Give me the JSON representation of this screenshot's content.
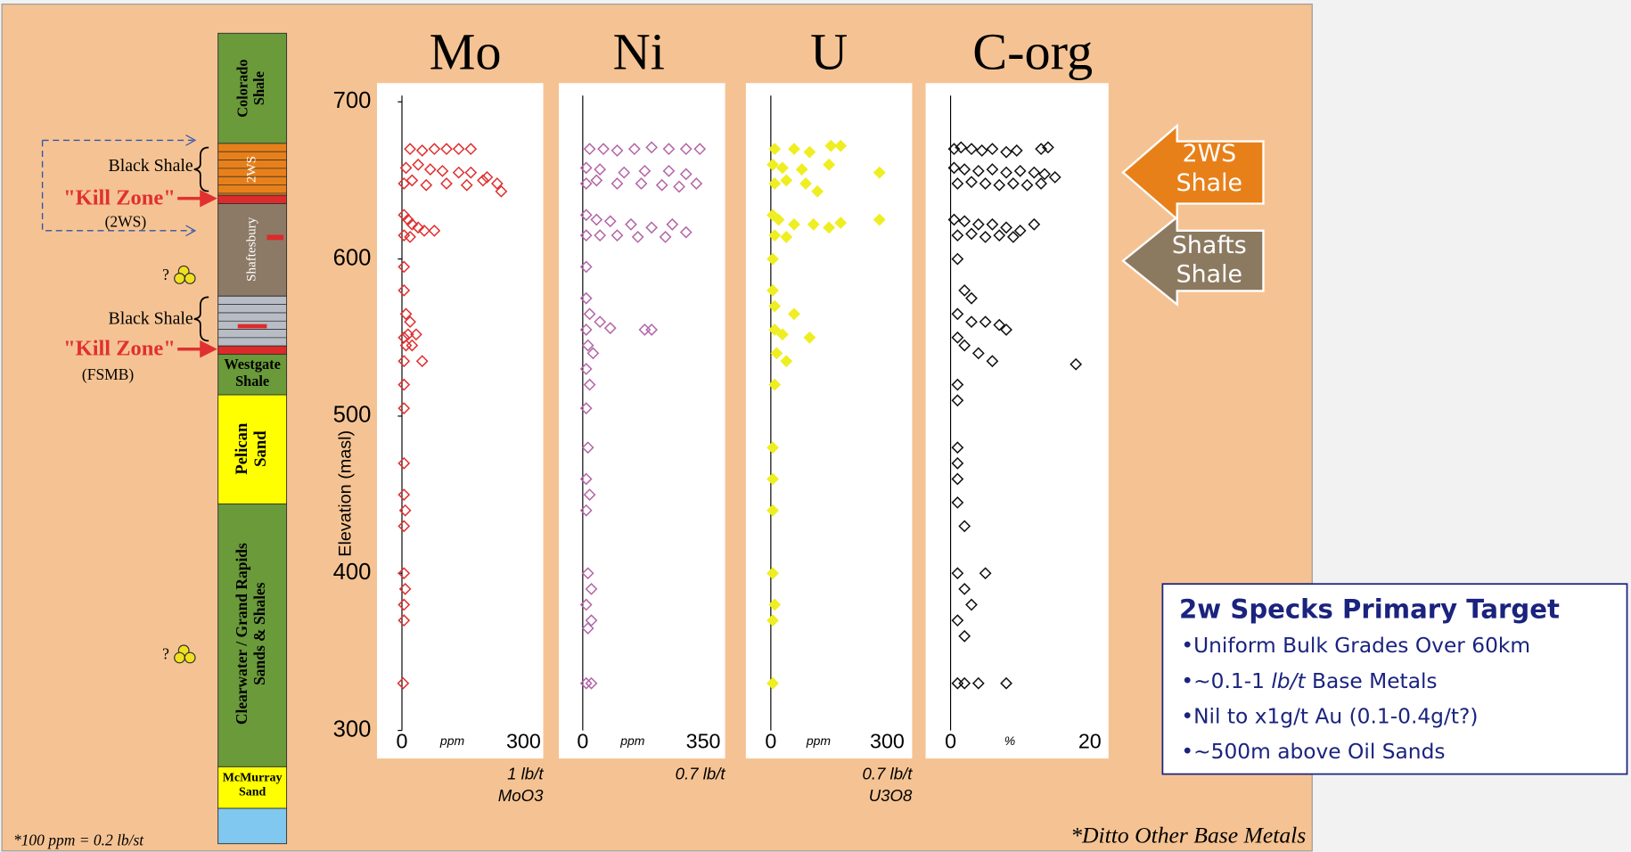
{
  "chart_data": [
    {
      "type": "scatter",
      "title": "Mo",
      "color": "#e03030",
      "marker": "open",
      "ylabel": "Elevation (masl)",
      "ylim": [
        300,
        700
      ],
      "yticks": [
        300,
        400,
        500,
        600,
        700
      ],
      "xlim": [
        0,
        300
      ],
      "xticks": [
        0,
        300
      ],
      "xlabel": "ppm",
      "notes": [
        "1 lb/t",
        "MoO3"
      ],
      "x": [
        20,
        50,
        80,
        110,
        140,
        170,
        10,
        40,
        70,
        100,
        140,
        170,
        210,
        5,
        25,
        60,
        110,
        160,
        200,
        235,
        245,
        5,
        15,
        25,
        40,
        55,
        80,
        5,
        20,
        5,
        5,
        10,
        20,
        5,
        15,
        35,
        10,
        25,
        5,
        50,
        5,
        5,
        5,
        5,
        8,
        5,
        5,
        8,
        5,
        5,
        3
      ],
      "y": [
        670,
        669,
        670,
        670,
        670,
        670,
        658,
        660,
        657,
        656,
        655,
        655,
        652,
        648,
        650,
        647,
        648,
        647,
        650,
        648,
        643,
        628,
        625,
        622,
        620,
        618,
        618,
        615,
        614,
        595,
        580,
        565,
        560,
        550,
        552,
        552,
        545,
        545,
        535,
        535,
        520,
        505,
        470,
        450,
        440,
        430,
        400,
        390,
        380,
        370,
        330
      ]
    },
    {
      "type": "scatter",
      "title": "Ni",
      "color": "#b466a8",
      "marker": "open",
      "ylim": [
        300,
        700
      ],
      "xlim": [
        0,
        350
      ],
      "xticks": [
        0,
        350
      ],
      "xlabel": "ppm",
      "notes": [
        "0.7 lb/t"
      ],
      "x": [
        20,
        60,
        100,
        150,
        200,
        250,
        300,
        340,
        10,
        50,
        120,
        180,
        250,
        300,
        10,
        40,
        100,
        170,
        230,
        280,
        330,
        10,
        40,
        80,
        140,
        200,
        260,
        10,
        50,
        100,
        160,
        240,
        300,
        10,
        10,
        20,
        50,
        10,
        80,
        180,
        200,
        15,
        30,
        10,
        20,
        10,
        15,
        10,
        20,
        10,
        15,
        25,
        10,
        25,
        15,
        10,
        25
      ],
      "y": [
        670,
        670,
        669,
        670,
        671,
        670,
        670,
        670,
        658,
        657,
        655,
        656,
        656,
        654,
        648,
        650,
        648,
        648,
        647,
        646,
        648,
        628,
        625,
        624,
        622,
        620,
        622,
        615,
        615,
        615,
        614,
        614,
        617,
        595,
        575,
        565,
        560,
        555,
        556,
        555,
        555,
        545,
        540,
        530,
        520,
        505,
        480,
        460,
        450,
        440,
        400,
        390,
        380,
        370,
        365,
        330,
        330
      ]
    },
    {
      "type": "scatter",
      "title": "U",
      "color": "#eeee22",
      "marker": "filled",
      "ylim": [
        300,
        700
      ],
      "xlim": [
        0,
        300
      ],
      "xticks": [
        0,
        300
      ],
      "xlabel": "ppm",
      "notes": [
        "0.7 lb/t",
        "U3O8"
      ],
      "x": [
        10,
        60,
        100,
        155,
        180,
        5,
        30,
        80,
        150,
        280,
        40,
        10,
        90,
        120,
        5,
        20,
        60,
        110,
        150,
        180,
        280,
        10,
        40,
        5,
        5,
        10,
        60,
        10,
        30,
        100,
        15,
        40,
        10,
        5,
        5,
        5,
        5,
        10,
        5,
        5
      ],
      "y": [
        670,
        670,
        668,
        672,
        672,
        660,
        658,
        657,
        660,
        655,
        650,
        648,
        648,
        643,
        628,
        625,
        622,
        622,
        620,
        623,
        625,
        615,
        614,
        600,
        580,
        570,
        565,
        555,
        552,
        550,
        540,
        535,
        520,
        480,
        460,
        440,
        400,
        380,
        370,
        330
      ]
    },
    {
      "type": "scatter",
      "title": "C-org",
      "color": "#111111",
      "marker": "open",
      "ylim": [
        300,
        700
      ],
      "xlim": [
        0,
        20
      ],
      "xticks": [
        0,
        20
      ],
      "xlabel": "%",
      "x": [
        0.5,
        1.5,
        3,
        4.5,
        6,
        8,
        9.5,
        13,
        14,
        0.5,
        2,
        4,
        6,
        8,
        10,
        12,
        13.5,
        15,
        1,
        3,
        5,
        7,
        9,
        11,
        13,
        0.5,
        2,
        4,
        6,
        8,
        10,
        12,
        1,
        3,
        5,
        7,
        9,
        1,
        2,
        3,
        1,
        3,
        5,
        7,
        8,
        1,
        2,
        4,
        6,
        18,
        1,
        1,
        1,
        1,
        1,
        1,
        2,
        1,
        5,
        2,
        3,
        1,
        2,
        1,
        2,
        4,
        8
      ],
      "y": [
        670,
        671,
        670,
        669,
        670,
        668,
        669,
        670,
        671,
        658,
        657,
        656,
        657,
        655,
        656,
        655,
        654,
        652,
        648,
        649,
        648,
        647,
        648,
        647,
        648,
        625,
        624,
        622,
        622,
        620,
        618,
        622,
        615,
        616,
        614,
        615,
        614,
        600,
        580,
        575,
        565,
        560,
        560,
        558,
        555,
        550,
        545,
        540,
        535,
        533,
        520,
        510,
        480,
        470,
        460,
        445,
        430,
        400,
        400,
        390,
        380,
        370,
        360,
        330,
        330,
        330,
        330
      ]
    }
  ],
  "column": {
    "layers": [
      {
        "lines": [
          "Colorado",
          "Shale"
        ]
      },
      {
        "lines": [
          "2WS"
        ]
      },
      {
        "lines": [
          "Shaftesbury"
        ]
      },
      {
        "lines": [
          "Westgate",
          "Shale"
        ]
      },
      {
        "lines": [
          "Pelican",
          "Sand"
        ]
      },
      {
        "lines": [
          "Clearwater / Grand Rapids",
          "Sands & Shales"
        ]
      },
      {
        "lines": [
          "McMurray",
          "Sand"
        ]
      }
    ]
  },
  "left_labels": {
    "black_shale_1": "Black Shale",
    "kill_zone_1": "\"Kill Zone\"",
    "kill_zone_1_note": "(2WS)",
    "question_1": "?",
    "black_shale_2": "Black Shale",
    "kill_zone_2": "\"Kill Zone\"",
    "kill_zone_2_note": "(FSMB)",
    "question_2": "?"
  },
  "arrows": [
    {
      "lines": [
        "2WS",
        "Shale"
      ]
    },
    {
      "lines": [
        "Shafts",
        "Shale"
      ]
    }
  ],
  "target_box": {
    "title": "2w Specks Primary Target",
    "bullets": [
      [
        "•Uniform Bulk Grades Over 60km"
      ],
      [
        "•~0.1-1 ",
        "lb/t",
        " Base Metals"
      ],
      [
        "•Nil to x1g/t Au (0.1-0.4g/t?)"
      ],
      [
        "•~500m above Oil Sands"
      ]
    ]
  },
  "footnote_left": "*100 ppm = 0.2 lb/st",
  "footnote_right": "*Ditto Other Base Metals"
}
